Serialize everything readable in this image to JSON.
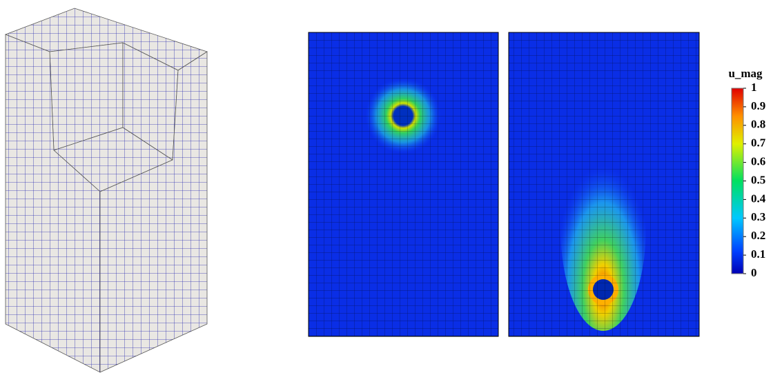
{
  "colorbar": {
    "title": "u_mag",
    "ticks": [
      0,
      0.1,
      0.2,
      0.3,
      0.4,
      0.5,
      0.6,
      0.7,
      0.8,
      0.9,
      1
    ]
  }
}
